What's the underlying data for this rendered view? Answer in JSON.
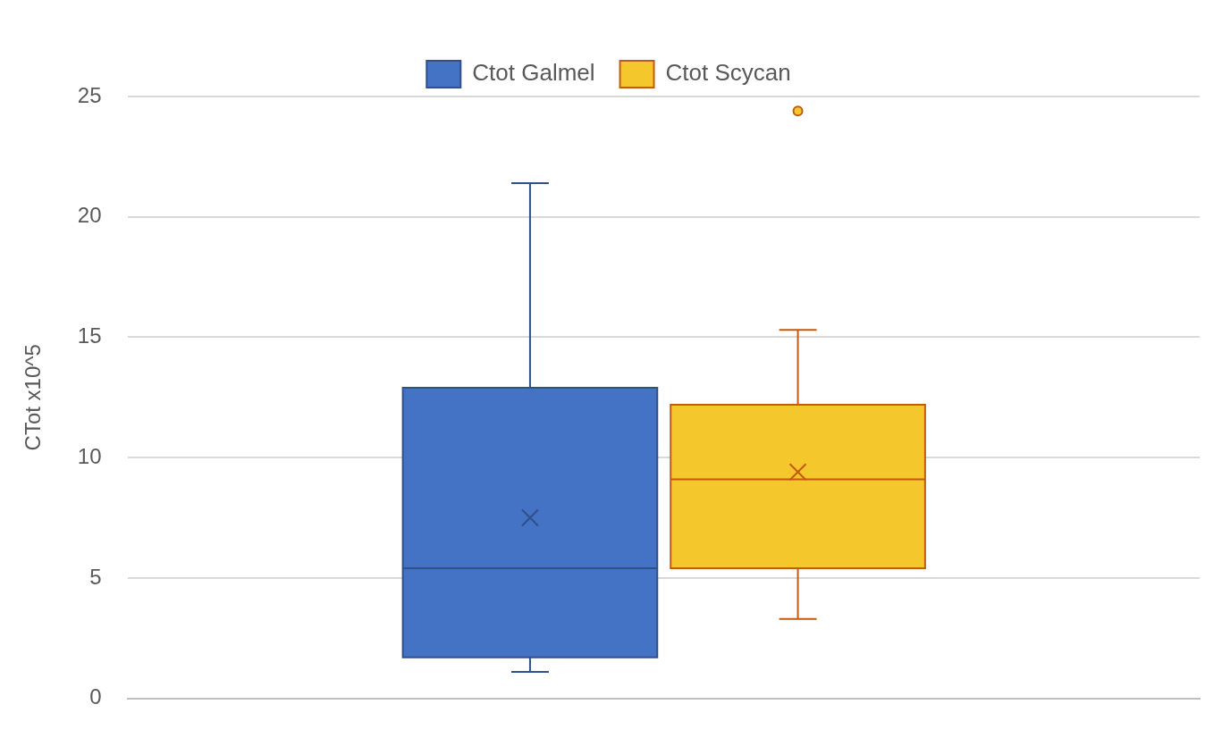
{
  "chart_data": {
    "type": "box",
    "categories": [
      null
    ],
    "ylabel": "CTot x10^5",
    "ylim": [
      0,
      25
    ],
    "yticks": [
      0,
      5,
      10,
      15,
      20,
      25
    ],
    "grid": "y",
    "legend": "top",
    "series": [
      {
        "name": "Ctot Galmel",
        "color": "#4472c4",
        "boxes": [
          {
            "low": 1.1,
            "q1": 1.7,
            "median": 5.4,
            "q3": 12.9,
            "high": 21.4,
            "mean": 7.5
          }
        ]
      },
      {
        "name": "Ctot Scycan",
        "color": "#f4c72c",
        "boxes": [
          {
            "low": 3.3,
            "q1": 5.4,
            "median": 9.1,
            "q3": 12.2,
            "high": 15.3,
            "mean": 9.4,
            "outliers": [
              24.4
            ]
          }
        ]
      }
    ]
  }
}
